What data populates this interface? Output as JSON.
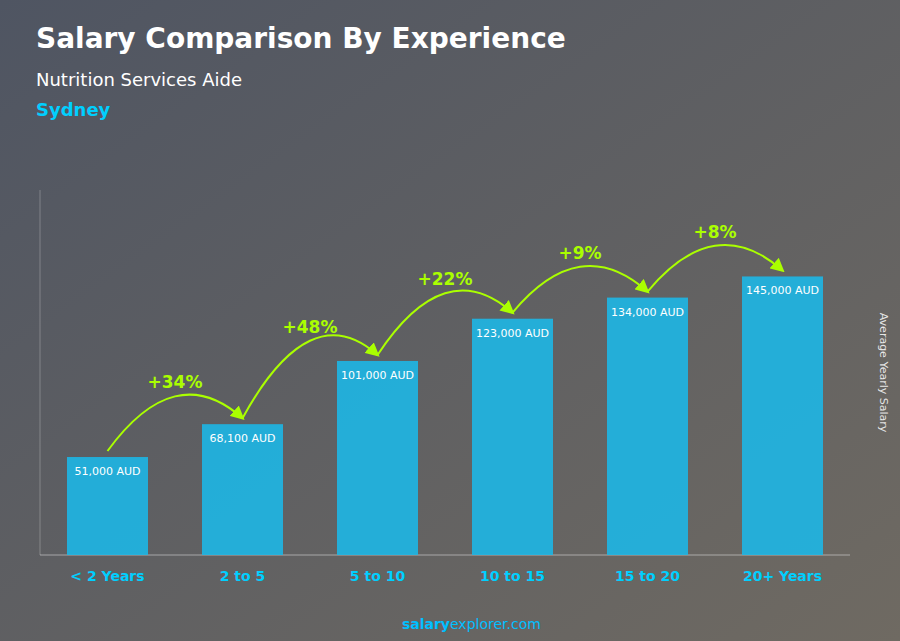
{
  "chart_data": {
    "type": "bar",
    "title": "Salary Comparison By Experience",
    "subtitle": "Nutrition Services Aide",
    "city": "Sydney",
    "y_label": "Average Yearly Salary",
    "categories": [
      "< 2 Years",
      "2 to 5",
      "5 to 10",
      "10 to 15",
      "15 to 20",
      "20+ Years"
    ],
    "values": [
      51000,
      68100,
      101000,
      123000,
      134000,
      145000
    ],
    "value_labels": [
      "51,000 AUD",
      "68,100 AUD",
      "101,000 AUD",
      "123,000 AUD",
      "134,000 AUD",
      "145,000 AUD"
    ],
    "data_labels": true,
    "annotations": [
      "+34%",
      "+48%",
      "+22%",
      "+9%",
      "+8%"
    ],
    "footer": [
      "salary",
      "explorer.com"
    ],
    "color": "#1BB8E8",
    "ylim": [
      0,
      190000
    ],
    "yticks": [],
    "tick_labels": "x",
    "grid": false
  }
}
